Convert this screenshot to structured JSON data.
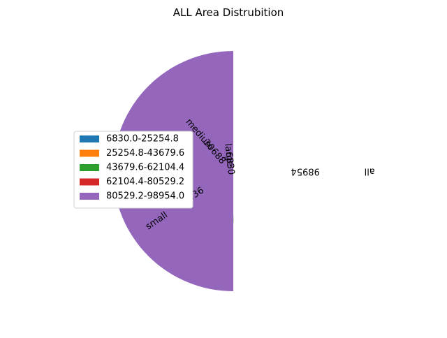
{
  "chart_data": {
    "type": "pie",
    "title": "ALL Area Distrubition",
    "categories": [
      "large",
      "medium",
      "small",
      "all"
    ],
    "values": [
      6830,
      30688,
      61436,
      98954
    ],
    "slice_labels": [
      "6830",
      "30688",
      "61436",
      "98954"
    ],
    "start_angle_deg": 90,
    "radius_scaled_by_value": true,
    "exploded": true,
    "legend": {
      "placement": "left",
      "entries": [
        {
          "label": "6830.0-25254.8",
          "color": "#1f77b4"
        },
        {
          "label": "25254.8-43679.6",
          "color": "#ff7f0e"
        },
        {
          "label": "43679.6-62104.4",
          "color": "#2ca02c"
        },
        {
          "label": "62104.4-80529.2",
          "color": "#d62728"
        },
        {
          "label": "80529.2-98954.0",
          "color": "#9467bd"
        }
      ]
    },
    "slice_colors": [
      "#1f77b4",
      "#ff7f0e",
      "#2ca02c",
      "#9467bd"
    ]
  }
}
